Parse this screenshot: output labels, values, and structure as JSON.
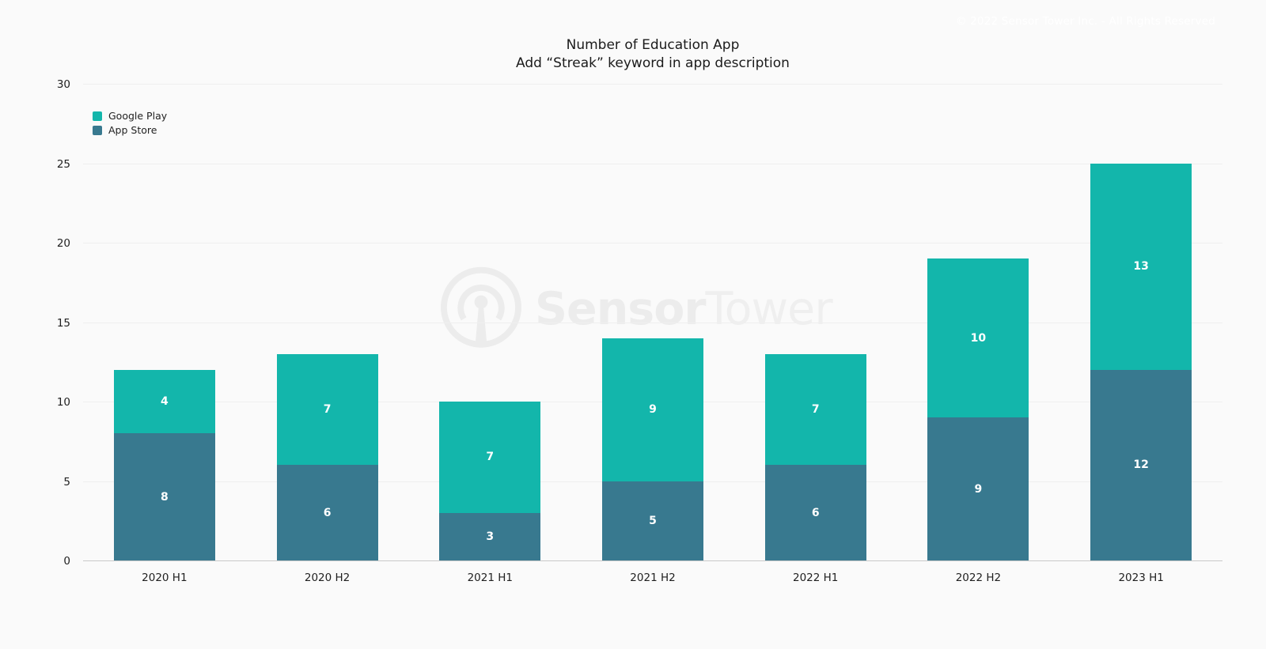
{
  "page": {
    "copyright": "© 2022 Sensor Tower Inc. - All Rights Reserved"
  },
  "title": {
    "line1": "Number of Education App",
    "line2": "Add “Streak” keyword in app description"
  },
  "watermark": {
    "brand_bold": "Sensor",
    "brand_light": "Tower"
  },
  "colors": {
    "background": "#fafafa",
    "gridline": "#efefef",
    "axis_line": "#c9c9c9",
    "bar_value_text": "#ffffff"
  },
  "chart_data": {
    "type": "bar",
    "stacked": true,
    "title": "Number of Education App",
    "subtitle": "Add “Streak” keyword in app description",
    "categories": [
      "2020 H1",
      "2020 H2",
      "2021 H1",
      "2021 H2",
      "2022 H1",
      "2022 H2",
      "2023 H1"
    ],
    "series": [
      {
        "name": "Google Play",
        "color": "#13b6ab",
        "values": [
          4,
          7,
          7,
          9,
          7,
          10,
          13
        ]
      },
      {
        "name": "App Store",
        "color": "#38798f",
        "values": [
          8,
          6,
          3,
          5,
          6,
          9,
          12
        ]
      }
    ],
    "stack_order_bottom_to_top": [
      "App Store",
      "Google Play"
    ],
    "totals": [
      12,
      13,
      10,
      14,
      13,
      19,
      25
    ],
    "ylim": [
      0,
      30
    ],
    "yticks": [
      0,
      5,
      10,
      15,
      20,
      25,
      30
    ],
    "grid": true,
    "legend_position": "top-left",
    "value_labels": "inside-segment-center"
  }
}
